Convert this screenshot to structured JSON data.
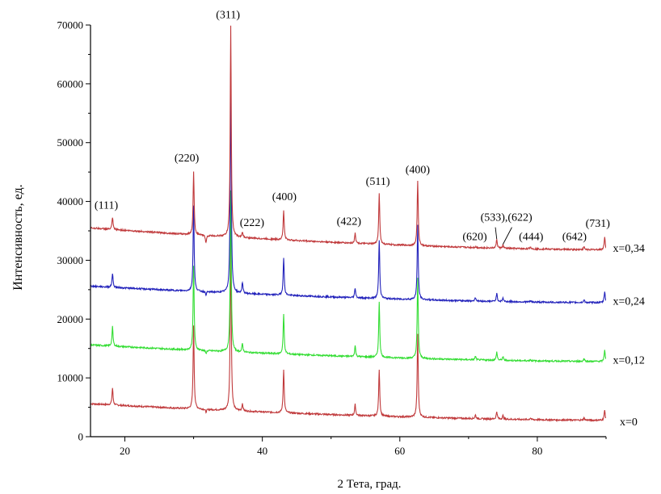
{
  "chart_data": {
    "type": "line",
    "title": "",
    "xlabel": "2 Тета, град.",
    "ylabel": "Интенсивность, ед.",
    "xlim": [
      15,
      90
    ],
    "ylim": [
      0,
      70000
    ],
    "xticks": [
      20,
      40,
      60,
      80
    ],
    "yticks": [
      0,
      10000,
      20000,
      30000,
      40000,
      50000,
      60000,
      70000
    ],
    "xtick_labels": [
      "20",
      "40",
      "60",
      "80"
    ],
    "ytick_labels": [
      "0",
      "10000",
      "20000",
      "30000",
      "40000",
      "50000",
      "60000",
      "70000"
    ],
    "grid": false,
    "series": [
      {
        "name": "x=0",
        "color": "#c0393b",
        "start": 5600,
        "end": 2800,
        "peaks": [
          [
            18.2,
            8300
          ],
          [
            30.0,
            18800
          ],
          [
            31.8,
            4100
          ],
          [
            35.4,
            34000
          ],
          [
            37.1,
            5600
          ],
          [
            43.1,
            11500
          ],
          [
            53.5,
            5500
          ],
          [
            57.0,
            11500
          ],
          [
            62.6,
            17500
          ],
          [
            71.0,
            3700
          ],
          [
            74.1,
            4300
          ],
          [
            75.0,
            3600
          ],
          [
            79.0,
            3200
          ],
          [
            86.8,
            3200
          ],
          [
            89.8,
            4500
          ]
        ]
      },
      {
        "name": "x=0,12",
        "color": "#33dd33",
        "start": 15600,
        "end": 12800,
        "peaks": [
          [
            18.2,
            18700
          ],
          [
            30.0,
            29000
          ],
          [
            31.8,
            14100
          ],
          [
            35.4,
            42000
          ],
          [
            37.1,
            15800
          ],
          [
            43.1,
            20800
          ],
          [
            53.5,
            15500
          ],
          [
            57.0,
            23000
          ],
          [
            62.6,
            27000
          ],
          [
            71.0,
            13700
          ],
          [
            74.1,
            14400
          ],
          [
            75.0,
            13600
          ],
          [
            79.0,
            13100
          ],
          [
            86.8,
            13300
          ],
          [
            89.8,
            14800
          ]
        ]
      },
      {
        "name": "x=0,24",
        "color": "#2222bb",
        "start": 25600,
        "end": 22800,
        "peaks": [
          [
            18.2,
            27800
          ],
          [
            30.0,
            39200
          ],
          [
            31.8,
            24100
          ],
          [
            35.4,
            62000
          ],
          [
            37.1,
            26200
          ],
          [
            43.1,
            30500
          ],
          [
            53.5,
            25300
          ],
          [
            57.0,
            33500
          ],
          [
            62.6,
            36000
          ],
          [
            71.0,
            23700
          ],
          [
            74.1,
            24400
          ],
          [
            75.0,
            23600
          ],
          [
            79.0,
            23100
          ],
          [
            86.8,
            23300
          ],
          [
            89.8,
            24700
          ]
        ]
      },
      {
        "name": "x=0,34",
        "color": "#c0393b",
        "start": 35500,
        "end": 31800,
        "peaks": [
          [
            18.2,
            37300
          ],
          [
            30.0,
            45000
          ],
          [
            31.8,
            32900
          ],
          [
            35.4,
            70000
          ],
          [
            37.1,
            34700
          ],
          [
            43.1,
            38500
          ],
          [
            53.5,
            34700
          ],
          [
            57.0,
            41500
          ],
          [
            62.6,
            43500
          ],
          [
            71.0,
            32300
          ],
          [
            74.1,
            33600
          ],
          [
            75.0,
            32600
          ],
          [
            79.0,
            32300
          ],
          [
            86.8,
            32300
          ],
          [
            89.8,
            34000
          ]
        ]
      }
    ],
    "series_labels": [
      {
        "text": "x=0,34",
        "x": 91,
        "y": 32000
      },
      {
        "text": "x=0,24",
        "x": 91,
        "y": 23000
      },
      {
        "text": "x=0,12",
        "x": 91,
        "y": 13000
      },
      {
        "text": "x=0",
        "x": 92,
        "y": 2500
      }
    ],
    "annotations": [
      {
        "text": "(111)",
        "x": 17.3,
        "y": 38800
      },
      {
        "text": "(220)",
        "x": 29.0,
        "y": 46800
      },
      {
        "text": "(311)",
        "x": 35.0,
        "y": 71200
      },
      {
        "text": "(222)",
        "x": 38.5,
        "y": 35800
      },
      {
        "text": "(400)",
        "x": 43.2,
        "y": 40200
      },
      {
        "text": "(422)",
        "x": 52.6,
        "y": 36000
      },
      {
        "text": "(511)",
        "x": 56.8,
        "y": 42800
      },
      {
        "text": "(400)",
        "x": 62.6,
        "y": 44800
      },
      {
        "text": "(620)",
        "x": 70.9,
        "y": 33400
      },
      {
        "text": "(533),(622)",
        "x": 75.5,
        "y": 36700
      },
      {
        "text": "(444)",
        "x": 79.1,
        "y": 33400
      },
      {
        "text": "(642)",
        "x": 85.4,
        "y": 33400
      },
      {
        "text": "(731)",
        "x": 88.8,
        "y": 35700
      }
    ],
    "annotation_leaders": [
      [
        [
          73.9,
          35600
        ],
        [
          74.1,
          33600
        ]
      ],
      [
        [
          76.3,
          35600
        ],
        [
          75.0,
          32700
        ]
      ]
    ]
  }
}
